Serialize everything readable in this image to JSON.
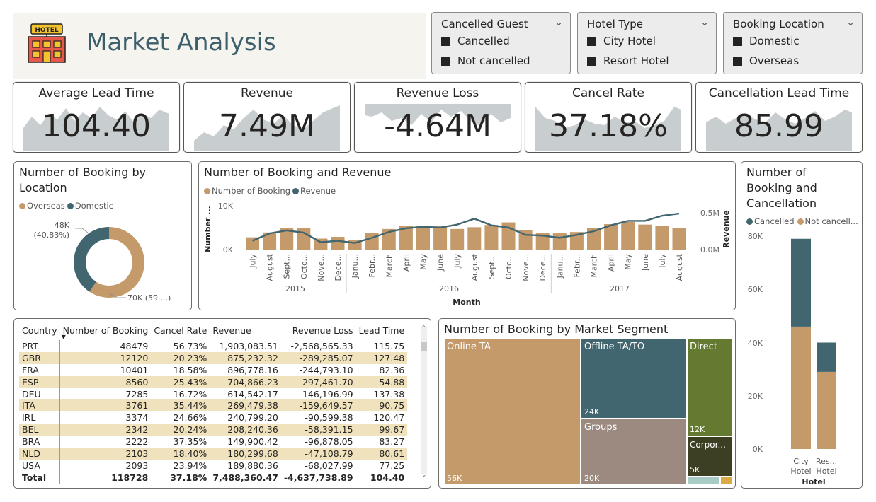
{
  "header": {
    "title": "Market Analysis",
    "logo_text": "HOTEL"
  },
  "filters": {
    "cancelled_guest": {
      "title": "Cancelled Guest",
      "options": [
        "Cancelled",
        "Not cancelled"
      ]
    },
    "hotel_type": {
      "title": "Hotel Type",
      "options": [
        "City Hotel",
        "Resort Hotel"
      ]
    },
    "booking_location": {
      "title": "Booking Location",
      "options": [
        "Domestic",
        "Overseas"
      ]
    }
  },
  "kpis": [
    {
      "title": "Average Lead Time",
      "value": "104.40"
    },
    {
      "title": "Revenue",
      "value": "7.49M"
    },
    {
      "title": "Revenue Loss",
      "value": "-4.64M"
    },
    {
      "title": "Cancel Rate",
      "value": "37.18%"
    },
    {
      "title": "Cancellation Lead Time",
      "value": "85.99"
    }
  ],
  "location_panel": {
    "title_line1": "Number of Booking by",
    "title_line2": "Location",
    "legend": [
      "Overseas",
      "Domestic"
    ],
    "domestic_label_1": "48K",
    "domestic_label_2": "(40.83%)",
    "overseas_label": "70K (59....)"
  },
  "combo_panel": {
    "title": "Number of Booking and Revenue",
    "legend": [
      "Number of Booking",
      "Revenue"
    ],
    "y_left_label": "Number ...",
    "y_right_label": "Revenue",
    "y_left_ticks": [
      "10K",
      "0K"
    ],
    "y_right_ticks": [
      "0.5M",
      "0.0M"
    ],
    "x_title": "Month",
    "months": [
      "July",
      "August",
      "Sept...",
      "Octo...",
      "Nove...",
      "Dece...",
      "Janu...",
      "Febr...",
      "March",
      "April",
      "May",
      "June",
      "July",
      "August",
      "Sept...",
      "Octo...",
      "Nove...",
      "Dece...",
      "Janu...",
      "Febr...",
      "March",
      "April",
      "May",
      "June",
      "July",
      "August"
    ],
    "years": [
      "2015",
      "2016",
      "2017"
    ]
  },
  "cancel_panel": {
    "title_line1": "Number of",
    "title_line2": "Booking and",
    "title_line3": "Cancellation",
    "legend": [
      "Cancelled",
      "Not cancell..."
    ],
    "y_ticks": [
      "80K",
      "60K",
      "40K",
      "20K",
      "0K"
    ],
    "x_labels": [
      [
        "City",
        "Hotel"
      ],
      [
        "Res...",
        "Hotel"
      ]
    ],
    "x_title": "Hotel"
  },
  "country_table": {
    "headers": [
      "Country",
      "Number of Booking",
      "Cancel Rate",
      "Revenue",
      "Revenue Loss",
      "Lead Time"
    ],
    "rows": [
      [
        "PRT",
        "48479",
        "56.73%",
        "1,903,083.51",
        "-2,568,565.33",
        "115.75"
      ],
      [
        "GBR",
        "12120",
        "20.23%",
        "875,232.32",
        "-289,285.07",
        "127.48"
      ],
      [
        "FRA",
        "10401",
        "18.58%",
        "896,778.16",
        "-244,793.10",
        "82.36"
      ],
      [
        "ESP",
        "8560",
        "25.43%",
        "704,866.23",
        "-297,461.70",
        "54.88"
      ],
      [
        "DEU",
        "7285",
        "16.72%",
        "614,542.17",
        "-146,196.99",
        "137.38"
      ],
      [
        "ITA",
        "3761",
        "35.44%",
        "269,479.38",
        "-159,649.57",
        "90.75"
      ],
      [
        "IRL",
        "3374",
        "24.66%",
        "240,799.20",
        "-90,599.38",
        "120.47"
      ],
      [
        "BEL",
        "2342",
        "20.24%",
        "208,240.36",
        "-58,391.15",
        "99.67"
      ],
      [
        "BRA",
        "2222",
        "37.35%",
        "149,900.42",
        "-96,878.05",
        "83.27"
      ],
      [
        "NLD",
        "2103",
        "18.40%",
        "180,299.68",
        "-47,108.79",
        "80.61"
      ],
      [
        "USA",
        "2093",
        "23.94%",
        "189,880.36",
        "-68,027.99",
        "77.25"
      ]
    ],
    "total": [
      "Total",
      "118728",
      "37.18%",
      "7,488,360.47",
      "-4,637,738.89",
      "104.40"
    ]
  },
  "segment_panel": {
    "title": "Number of Booking by Market Segment",
    "segments": [
      {
        "name": "Online TA",
        "value": "56K"
      },
      {
        "name": "Offline TA/TO",
        "value": "24K"
      },
      {
        "name": "Groups",
        "value": "20K"
      },
      {
        "name": "Direct",
        "value": "12K"
      },
      {
        "name": "Corpor...",
        "value": "5K"
      }
    ]
  },
  "colors": {
    "tan": "#c49a6a",
    "teal": "#41666f",
    "olive": "#637a30",
    "taupe": "#9c8a80",
    "darkolive": "#3d3f22",
    "spark": "#c8cdcf"
  },
  "chart_data": [
    {
      "type": "line",
      "title": "Number of Booking and Revenue",
      "xlabel": "Month",
      "ylabel": "Number ...",
      "y2label": "Revenue",
      "categories": [
        "July",
        "August",
        "Sept...",
        "Octo...",
        "Nove...",
        "Dece...",
        "Janu...",
        "Febr...",
        "March",
        "April",
        "May",
        "June",
        "July",
        "August",
        "Sept...",
        "Octo...",
        "Nove...",
        "Dece...",
        "Janu...",
        "Febr...",
        "March",
        "April",
        "May",
        "June",
        "July",
        "August"
      ],
      "series": [
        {
          "name": "Number of Booking",
          "kind": "bar",
          "values": [
            2800,
            3900,
            4900,
            4900,
            2500,
            2900,
            2100,
            3800,
            4700,
            5400,
            5300,
            5300,
            4700,
            5100,
            5600,
            6200,
            4400,
            3800,
            3700,
            4000,
            4900,
            5800,
            6300,
            5700,
            5400,
            4900
          ]
        },
        {
          "name": "Revenue",
          "kind": "line",
          "values": [
            0.12,
            0.22,
            0.26,
            0.23,
            0.1,
            0.12,
            0.09,
            0.16,
            0.24,
            0.29,
            0.31,
            0.3,
            0.34,
            0.42,
            0.33,
            0.3,
            0.2,
            0.19,
            0.16,
            0.2,
            0.25,
            0.33,
            0.39,
            0.39,
            0.46,
            0.49
          ]
        }
      ],
      "ylim": [
        0,
        10000
      ],
      "y2lim": [
        0,
        0.5
      ]
    },
    {
      "type": "bar",
      "title": "Number of Booking and Cancellation",
      "categories": [
        "City Hotel",
        "Resort Hotel"
      ],
      "series": [
        {
          "name": "Not cancell...",
          "values": [
            46000,
            29000
          ]
        },
        {
          "name": "Cancelled",
          "values": [
            33000,
            11000
          ]
        }
      ],
      "ylim": [
        0,
        80000
      ],
      "stacked": true
    },
    {
      "type": "pie",
      "title": "Number of Booking by Location",
      "categories": [
        "Overseas",
        "Domestic"
      ],
      "values": [
        70000,
        48000
      ]
    }
  ]
}
